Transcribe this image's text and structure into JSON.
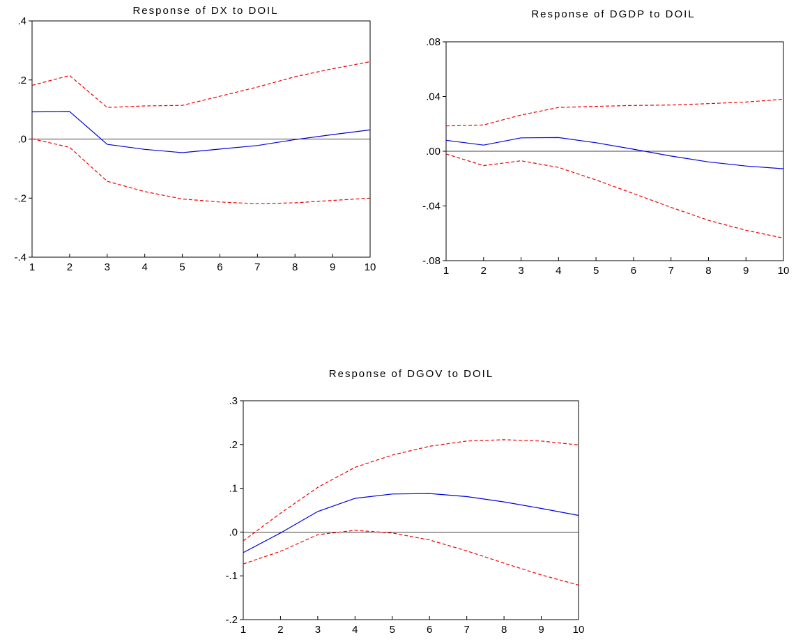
{
  "chart_data": [
    {
      "type": "line",
      "title": "Response of DX to DOIL",
      "x": [
        1,
        2,
        3,
        4,
        5,
        6,
        7,
        8,
        9,
        10
      ],
      "ylim": [
        -0.4,
        0.4
      ],
      "yticks": [
        -0.4,
        -0.2,
        0.0,
        0.2,
        0.4
      ],
      "yticklabels": [
        "-.4",
        "-.2",
        ".0",
        ".2",
        ".4"
      ],
      "xticklabels": [
        "1",
        "2",
        "3",
        "4",
        "5",
        "6",
        "7",
        "8",
        "9",
        "10"
      ],
      "grid": false,
      "series": [
        {
          "role": "response",
          "color": "#0000dd",
          "style": "solid",
          "values": [
            0.092,
            0.093,
            -0.018,
            -0.035,
            -0.046,
            -0.034,
            -0.022,
            -0.002,
            0.015,
            0.031
          ]
        },
        {
          "role": "upper",
          "color": "#ee0000",
          "style": "dashed",
          "values": [
            0.182,
            0.215,
            0.107,
            0.112,
            0.114,
            0.145,
            0.176,
            0.211,
            0.238,
            0.262
          ]
        },
        {
          "role": "lower",
          "color": "#ee0000",
          "style": "dashed",
          "values": [
            0.001,
            -0.028,
            -0.143,
            -0.178,
            -0.203,
            -0.213,
            -0.219,
            -0.216,
            -0.208,
            -0.2
          ]
        }
      ]
    },
    {
      "type": "line",
      "title": "Response of DGDP to DOIL",
      "x": [
        1,
        2,
        3,
        4,
        5,
        6,
        7,
        8,
        9,
        10
      ],
      "ylim": [
        -0.08,
        0.08
      ],
      "yticks": [
        -0.08,
        -0.04,
        0.0,
        0.04,
        0.08
      ],
      "yticklabels": [
        "-.08",
        "-.04",
        ".00",
        ".04",
        ".08"
      ],
      "xticklabels": [
        "1",
        "2",
        "3",
        "4",
        "5",
        "6",
        "7",
        "8",
        "9",
        "10"
      ],
      "grid": false,
      "series": [
        {
          "role": "response",
          "color": "#0000dd",
          "style": "solid",
          "values": [
            0.008,
            0.0045,
            0.0098,
            0.01,
            0.0062,
            0.0015,
            -0.0035,
            -0.0078,
            -0.0108,
            -0.0128
          ]
        },
        {
          "role": "upper",
          "color": "#ee0000",
          "style": "dashed",
          "values": [
            0.0185,
            0.0192,
            0.0265,
            0.032,
            0.0328,
            0.0335,
            0.0338,
            0.0348,
            0.036,
            0.038
          ]
        },
        {
          "role": "lower",
          "color": "#ee0000",
          "style": "dashed",
          "values": [
            -0.002,
            -0.0105,
            -0.007,
            -0.0118,
            -0.021,
            -0.031,
            -0.041,
            -0.0505,
            -0.0578,
            -0.0635
          ]
        }
      ]
    },
    {
      "type": "line",
      "title": "Response of DGOV to DOIL",
      "x": [
        1,
        2,
        3,
        4,
        5,
        6,
        7,
        8,
        9,
        10
      ],
      "ylim": [
        -0.2,
        0.3
      ],
      "yticks": [
        -0.2,
        -0.1,
        0.0,
        0.1,
        0.2,
        0.3
      ],
      "yticklabels": [
        "-.2",
        "-.1",
        ".0",
        ".1",
        ".2",
        ".3"
      ],
      "xticklabels": [
        "1",
        "2",
        "3",
        "4",
        "5",
        "6",
        "7",
        "8",
        "9",
        "10"
      ],
      "grid": false,
      "series": [
        {
          "role": "response",
          "color": "#0000dd",
          "style": "solid",
          "values": [
            -0.047,
            -0.002,
            0.047,
            0.077,
            0.087,
            0.088,
            0.081,
            0.069,
            0.054,
            0.038
          ]
        },
        {
          "role": "upper",
          "color": "#ee0000",
          "style": "dashed",
          "values": [
            -0.02,
            0.043,
            0.102,
            0.148,
            0.176,
            0.196,
            0.208,
            0.211,
            0.208,
            0.199
          ]
        },
        {
          "role": "lower",
          "color": "#ee0000",
          "style": "dashed",
          "values": [
            -0.073,
            -0.044,
            -0.006,
            0.004,
            -0.002,
            -0.018,
            -0.043,
            -0.071,
            -0.098,
            -0.121
          ]
        }
      ]
    }
  ]
}
